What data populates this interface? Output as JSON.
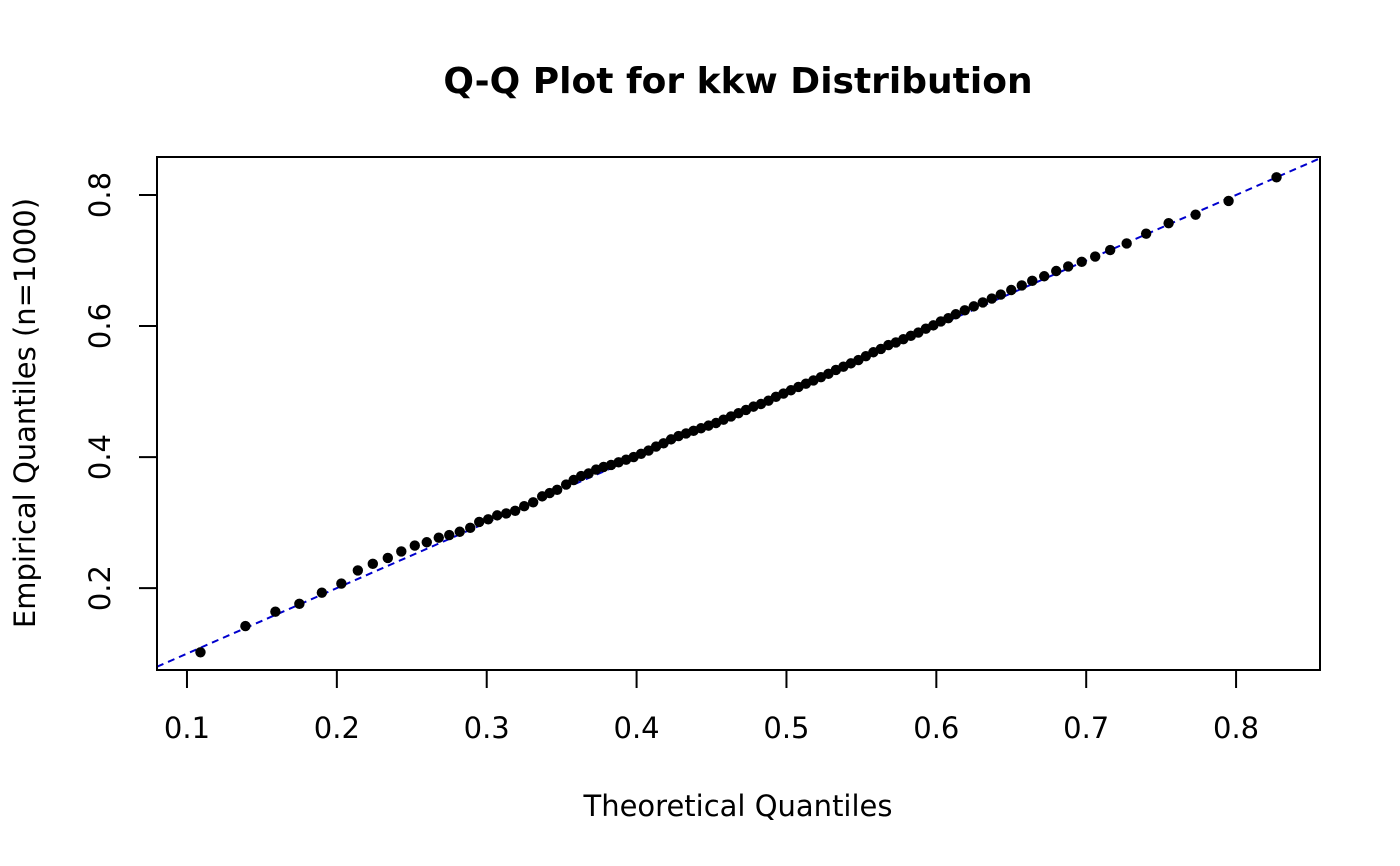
{
  "chart_data": {
    "type": "scatter",
    "title": "Q-Q Plot for kkw Distribution",
    "xlabel": "Theoretical Quantiles",
    "ylabel": "Empirical Quantiles (n=1000)",
    "xlim": [
      0.08,
      0.856
    ],
    "ylim": [
      0.075,
      0.858
    ],
    "x_ticks": [
      0.1,
      0.2,
      0.3,
      0.4,
      0.5,
      0.6,
      0.7,
      0.8
    ],
    "x_tick_labels": [
      "0.1",
      "0.2",
      "0.3",
      "0.4",
      "0.5",
      "0.6",
      "0.7",
      "0.8"
    ],
    "y_ticks": [
      0.2,
      0.4,
      0.6,
      0.8
    ],
    "y_tick_labels": [
      "0.2",
      "0.4",
      "0.6",
      "0.8"
    ],
    "reference_line": {
      "intercept": 0,
      "slope": 1,
      "color": "#0000cd",
      "style": "dashed"
    },
    "point_color": "#000000",
    "x": [
      0.109,
      0.139,
      0.159,
      0.175,
      0.19,
      0.203,
      0.214,
      0.224,
      0.234,
      0.243,
      0.252,
      0.26,
      0.268,
      0.275,
      0.282,
      0.289,
      0.295,
      0.301,
      0.307,
      0.313,
      0.319,
      0.325,
      0.331,
      0.337,
      0.342,
      0.347,
      0.353,
      0.358,
      0.363,
      0.368,
      0.373,
      0.378,
      0.383,
      0.388,
      0.393,
      0.398,
      0.403,
      0.408,
      0.413,
      0.418,
      0.423,
      0.428,
      0.433,
      0.438,
      0.443,
      0.448,
      0.453,
      0.458,
      0.463,
      0.468,
      0.473,
      0.478,
      0.483,
      0.488,
      0.493,
      0.498,
      0.503,
      0.508,
      0.513,
      0.518,
      0.523,
      0.528,
      0.533,
      0.538,
      0.543,
      0.548,
      0.553,
      0.558,
      0.563,
      0.568,
      0.573,
      0.578,
      0.583,
      0.588,
      0.593,
      0.598,
      0.603,
      0.608,
      0.613,
      0.619,
      0.625,
      0.631,
      0.637,
      0.643,
      0.65,
      0.657,
      0.664,
      0.672,
      0.68,
      0.688,
      0.697,
      0.706,
      0.716,
      0.727,
      0.74,
      0.755,
      0.773,
      0.795,
      0.827
    ],
    "y": [
      0.102,
      0.142,
      0.164,
      0.176,
      0.193,
      0.207,
      0.227,
      0.237,
      0.246,
      0.256,
      0.265,
      0.27,
      0.277,
      0.281,
      0.286,
      0.292,
      0.301,
      0.305,
      0.311,
      0.314,
      0.318,
      0.325,
      0.331,
      0.34,
      0.345,
      0.35,
      0.358,
      0.365,
      0.371,
      0.375,
      0.381,
      0.385,
      0.388,
      0.392,
      0.396,
      0.4,
      0.405,
      0.41,
      0.416,
      0.421,
      0.427,
      0.432,
      0.436,
      0.44,
      0.444,
      0.448,
      0.452,
      0.457,
      0.462,
      0.467,
      0.472,
      0.477,
      0.481,
      0.486,
      0.492,
      0.497,
      0.502,
      0.507,
      0.512,
      0.517,
      0.522,
      0.527,
      0.533,
      0.538,
      0.543,
      0.548,
      0.554,
      0.56,
      0.565,
      0.571,
      0.575,
      0.58,
      0.585,
      0.59,
      0.596,
      0.601,
      0.607,
      0.612,
      0.618,
      0.624,
      0.63,
      0.636,
      0.642,
      0.648,
      0.655,
      0.662,
      0.669,
      0.676,
      0.684,
      0.691,
      0.698,
      0.706,
      0.716,
      0.726,
      0.741,
      0.757,
      0.77,
      0.791,
      0.827
    ]
  }
}
